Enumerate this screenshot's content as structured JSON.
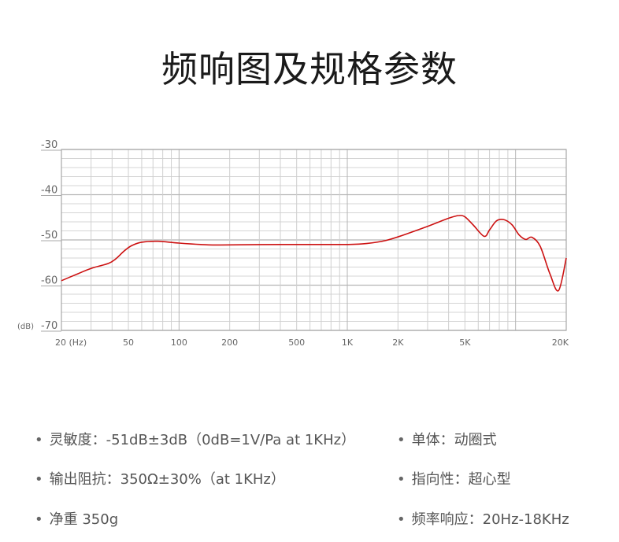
{
  "title": "频响图及规格参数",
  "chart_data": {
    "type": "line",
    "x_scale": "log",
    "xlim": [
      20,
      20000
    ],
    "ylim": [
      -70,
      -30
    ],
    "y_ticks": [
      "-30",
      "-40",
      "-50",
      "-60",
      "-70"
    ],
    "y_unit_label": "(dB)",
    "x_ticks": [
      {
        "label": "20 (Hz)",
        "value": 20
      },
      {
        "label": "50",
        "value": 50
      },
      {
        "label": "100",
        "value": 100
      },
      {
        "label": "200",
        "value": 200
      },
      {
        "label": "500",
        "value": 500
      },
      {
        "label": "1K",
        "value": 1000
      },
      {
        "label": "2K",
        "value": 2000
      },
      {
        "label": "5K",
        "value": 5000
      },
      {
        "label": "20K",
        "value": 20000
      }
    ],
    "grid": true,
    "line_color": "#cc1111",
    "series": [
      {
        "x": [
          20,
          25,
          30,
          38,
          42,
          47,
          52,
          60,
          75,
          100,
          150,
          200,
          400,
          700,
          1000,
          1300,
          1700,
          2200,
          3000,
          4000,
          4600,
          5000,
          5600,
          6500,
          7000,
          7700,
          8500,
          9500,
          10500,
          11500,
          12500,
          14000,
          16000,
          18000,
          20000
        ],
        "y": [
          -59.0,
          -57.5,
          -56.3,
          -55.2,
          -54.2,
          -52.5,
          -51.3,
          -50.5,
          -50.3,
          -50.7,
          -51.1,
          -51.1,
          -51.0,
          -51.0,
          -51.0,
          -50.8,
          -50.1,
          -48.8,
          -47.0,
          -45.2,
          -44.6,
          -44.9,
          -46.7,
          -49.2,
          -47.8,
          -45.8,
          -45.5,
          -46.6,
          -48.9,
          -49.9,
          -49.4,
          -51.4,
          -57.5,
          -61.2,
          -54.0
        ]
      }
    ]
  },
  "specs": {
    "sensitivity": "灵敏度：-51dB±3dB（0dB=1V/Pa at 1KHz）",
    "impedance": "输出阻抗：350Ω±30%（at 1KHz）",
    "weight": "净重 350g",
    "driver": "单体：动圈式",
    "polar_pattern": "指向性：超心型",
    "freq_response": "频率响应：20Hz-18KHz"
  }
}
